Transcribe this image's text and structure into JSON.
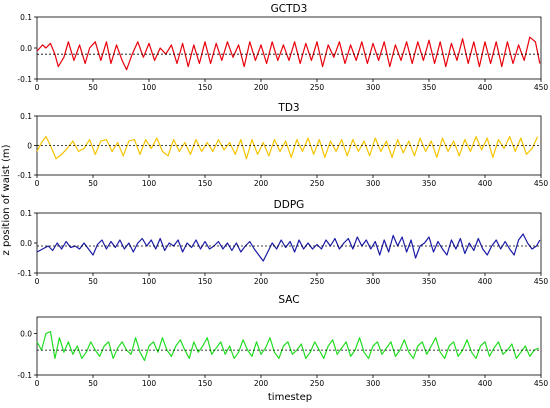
{
  "figure": {
    "xlabel": "timestep",
    "ylabel": "z position of waist (m)"
  },
  "chart_data": [
    {
      "type": "line",
      "title": "GCTD3",
      "color": "#e8000b",
      "x_ticks": [
        0,
        50,
        100,
        150,
        200,
        250,
        300,
        350,
        400,
        450
      ],
      "y_ticks": [
        -0.1,
        0.0,
        0.1
      ],
      "y_tick_labels": [
        "-0.1",
        "0.0",
        "0.1"
      ],
      "xlim": [
        0,
        450
      ],
      "ylim": [
        -0.1,
        0.1
      ],
      "reference_line": -0.02,
      "series": [
        {
          "x": [
            0,
            5,
            8,
            12,
            16,
            19,
            24,
            28,
            33,
            38,
            43,
            47,
            52,
            57,
            62,
            66,
            71,
            76,
            80,
            85,
            90,
            95,
            100,
            105,
            110,
            115,
            120,
            125,
            130,
            135,
            140,
            145,
            150,
            155,
            160,
            165,
            170,
            175,
            180,
            185,
            190,
            195,
            200,
            205,
            210,
            215,
            220,
            225,
            230,
            235,
            240,
            245,
            250,
            255,
            260,
            265,
            270,
            275,
            280,
            285,
            290,
            295,
            300,
            305,
            310,
            315,
            320,
            325,
            330,
            335,
            340,
            345,
            350,
            355,
            360,
            365,
            370,
            375,
            380,
            385,
            390,
            395,
            400,
            405,
            410,
            415,
            420,
            425,
            430,
            435,
            440,
            445,
            449
          ],
          "y": [
            -0.01,
            0.01,
            0.0,
            0.015,
            -0.02,
            -0.06,
            -0.03,
            0.02,
            -0.04,
            0.01,
            -0.05,
            0.0,
            0.02,
            -0.04,
            0.02,
            -0.05,
            0.01,
            -0.04,
            -0.07,
            -0.02,
            0.02,
            -0.03,
            0.015,
            -0.04,
            0.0,
            -0.02,
            0.01,
            -0.05,
            0.015,
            -0.06,
            0.01,
            -0.05,
            0.02,
            -0.05,
            0.015,
            -0.04,
            0.02,
            -0.03,
            0.01,
            -0.06,
            0.02,
            -0.04,
            0.01,
            -0.05,
            0.02,
            -0.04,
            0.01,
            -0.04,
            0.02,
            -0.05,
            0.015,
            -0.04,
            0.02,
            -0.06,
            0.01,
            -0.03,
            0.02,
            -0.05,
            0.01,
            -0.04,
            0.02,
            -0.05,
            0.015,
            -0.04,
            0.02,
            -0.06,
            0.01,
            -0.04,
            0.02,
            -0.05,
            0.02,
            -0.04,
            0.025,
            -0.05,
            0.02,
            -0.06,
            0.015,
            -0.04,
            0.03,
            -0.05,
            0.02,
            -0.06,
            0.02,
            -0.05,
            0.02,
            -0.06,
            0.02,
            -0.05,
            0.01,
            -0.04,
            0.035,
            0.02,
            -0.05
          ]
        }
      ]
    },
    {
      "type": "line",
      "title": "TD3",
      "color": "#f5c400",
      "x_ticks": [
        0,
        50,
        100,
        150,
        200,
        250,
        300,
        350,
        400,
        450
      ],
      "y_ticks": [
        -0.1,
        0.0,
        0.1
      ],
      "y_tick_labels": [
        "-0.1",
        "0",
        "0.1"
      ],
      "xlim": [
        0,
        450
      ],
      "ylim": [
        -0.1,
        0.1
      ],
      "reference_line": 0.0,
      "series": [
        {
          "x": [
            0,
            4,
            8,
            12,
            17,
            22,
            27,
            32,
            37,
            42,
            47,
            52,
            57,
            62,
            67,
            72,
            77,
            82,
            87,
            92,
            97,
            102,
            107,
            112,
            117,
            122,
            127,
            132,
            137,
            142,
            147,
            152,
            157,
            162,
            167,
            172,
            177,
            182,
            187,
            192,
            197,
            202,
            207,
            212,
            217,
            222,
            227,
            232,
            237,
            242,
            247,
            252,
            257,
            262,
            267,
            272,
            277,
            282,
            287,
            292,
            297,
            302,
            307,
            312,
            317,
            322,
            327,
            332,
            337,
            342,
            347,
            352,
            357,
            362,
            367,
            372,
            377,
            382,
            387,
            392,
            397,
            402,
            407,
            412,
            417,
            422,
            427,
            432,
            437,
            442,
            447
          ],
          "y": [
            -0.02,
            0.01,
            0.03,
            0.0,
            -0.045,
            -0.03,
            -0.01,
            0.015,
            -0.02,
            -0.01,
            0.02,
            -0.03,
            0.015,
            0.02,
            -0.02,
            0.01,
            -0.035,
            0.015,
            0.02,
            -0.03,
            0.02,
            -0.01,
            0.025,
            -0.02,
            -0.035,
            0.02,
            -0.02,
            0.01,
            -0.03,
            0.02,
            -0.02,
            0.01,
            -0.02,
            0.02,
            -0.015,
            0.01,
            -0.03,
            0.02,
            -0.045,
            0.02,
            -0.03,
            0.01,
            -0.035,
            0.02,
            -0.02,
            0.015,
            -0.04,
            0.02,
            -0.02,
            0.025,
            -0.03,
            0.02,
            -0.04,
            0.015,
            -0.02,
            0.02,
            -0.035,
            0.02,
            -0.02,
            0.015,
            -0.035,
            0.025,
            -0.02,
            0.015,
            -0.04,
            0.02,
            -0.025,
            0.015,
            -0.035,
            0.025,
            -0.02,
            0.015,
            -0.04,
            0.025,
            -0.02,
            0.015,
            -0.035,
            0.02,
            -0.02,
            0.03,
            -0.015,
            0.025,
            -0.04,
            0.02,
            -0.01,
            0.03,
            -0.02,
            0.025,
            -0.03,
            -0.01,
            0.03
          ]
        }
      ]
    },
    {
      "type": "line",
      "title": "DDPG",
      "color": "#1a1aa6",
      "x_ticks": [
        0,
        50,
        100,
        150,
        200,
        250,
        300,
        350,
        400,
        450
      ],
      "y_ticks": [
        -0.1,
        0.0,
        0.1
      ],
      "y_tick_labels": [
        "-0.1",
        "0.0",
        "0.1"
      ],
      "xlim": [
        0,
        450
      ],
      "ylim": [
        -0.1,
        0.1
      ],
      "reference_line": -0.01,
      "series": [
        {
          "x": [
            0,
            5,
            10,
            14,
            18,
            22,
            26,
            30,
            34,
            38,
            42,
            46,
            50,
            54,
            58,
            62,
            66,
            70,
            74,
            78,
            82,
            86,
            90,
            94,
            98,
            102,
            106,
            110,
            114,
            118,
            122,
            126,
            130,
            134,
            138,
            142,
            146,
            150,
            154,
            158,
            162,
            166,
            170,
            174,
            178,
            182,
            186,
            190,
            194,
            198,
            202,
            206,
            210,
            214,
            218,
            222,
            226,
            230,
            234,
            238,
            242,
            246,
            250,
            254,
            258,
            262,
            266,
            270,
            274,
            278,
            282,
            286,
            290,
            294,
            298,
            302,
            306,
            310,
            314,
            318,
            322,
            326,
            330,
            334,
            338,
            342,
            346,
            350,
            354,
            358,
            362,
            366,
            370,
            374,
            378,
            382,
            386,
            390,
            394,
            398,
            402,
            406,
            410,
            414,
            418,
            422,
            426,
            430,
            434,
            438,
            442,
            446,
            449
          ],
          "y": [
            -0.03,
            -0.02,
            -0.01,
            -0.025,
            0.0,
            -0.02,
            0.005,
            -0.015,
            -0.01,
            -0.02,
            0.0,
            -0.02,
            -0.04,
            -0.005,
            0.01,
            -0.02,
            0.005,
            -0.015,
            0.01,
            -0.02,
            0.0,
            -0.03,
            0.0,
            0.015,
            -0.01,
            0.01,
            -0.02,
            0.015,
            -0.025,
            0.0,
            -0.01,
            0.01,
            -0.03,
            0.0,
            -0.015,
            0.01,
            -0.02,
            0.005,
            -0.02,
            -0.01,
            0.005,
            -0.02,
            0.0,
            -0.025,
            0.0,
            -0.03,
            -0.01,
            0.005,
            -0.02,
            -0.04,
            -0.06,
            -0.03,
            0.0,
            -0.02,
            0.01,
            -0.015,
            0.005,
            -0.03,
            0.01,
            -0.02,
            0.0,
            -0.02,
            -0.005,
            -0.02,
            0.01,
            -0.01,
            0.015,
            -0.02,
            0.0,
            0.015,
            -0.02,
            0.02,
            -0.01,
            0.01,
            -0.02,
            0.005,
            -0.04,
            0.01,
            -0.03,
            0.025,
            -0.01,
            0.02,
            -0.03,
            0.01,
            -0.05,
            -0.01,
            0.0,
            0.02,
            -0.03,
            0.005,
            -0.02,
            -0.04,
            0.01,
            -0.02,
            0.015,
            -0.035,
            0.0,
            -0.025,
            0.015,
            -0.02,
            -0.04,
            -0.01,
            0.01,
            -0.02,
            0.005,
            -0.02,
            -0.04,
            0.01,
            0.03,
            0.0,
            -0.02,
            -0.01,
            0.01
          ]
        }
      ]
    },
    {
      "type": "line",
      "title": "SAC",
      "color": "#22dd22",
      "x_ticks": [
        0,
        50,
        100,
        150,
        200,
        250,
        300,
        350,
        400,
        450
      ],
      "y_ticks": [
        -0.1,
        0.0
      ],
      "y_tick_labels": [
        "-0.1",
        "0.0"
      ],
      "xlim": [
        0,
        450
      ],
      "ylim": [
        -0.1,
        0.04
      ],
      "reference_line": -0.04,
      "series": [
        {
          "x": [
            0,
            4,
            8,
            12,
            16,
            20,
            24,
            28,
            32,
            36,
            40,
            44,
            48,
            52,
            56,
            60,
            64,
            68,
            72,
            76,
            80,
            84,
            88,
            92,
            96,
            100,
            104,
            108,
            112,
            116,
            120,
            124,
            128,
            132,
            136,
            140,
            144,
            148,
            152,
            156,
            160,
            164,
            168,
            172,
            176,
            180,
            184,
            188,
            192,
            196,
            200,
            204,
            208,
            212,
            216,
            220,
            224,
            228,
            232,
            236,
            240,
            244,
            248,
            252,
            256,
            260,
            264,
            268,
            272,
            276,
            280,
            284,
            288,
            292,
            296,
            300,
            304,
            308,
            312,
            316,
            320,
            324,
            328,
            332,
            336,
            340,
            344,
            348,
            352,
            356,
            360,
            364,
            368,
            372,
            376,
            380,
            384,
            388,
            392,
            396,
            400,
            404,
            408,
            412,
            416,
            420,
            424,
            428,
            432,
            436,
            440,
            444,
            448
          ],
          "y": [
            -0.02,
            -0.04,
            0.0,
            0.005,
            -0.06,
            -0.01,
            -0.045,
            -0.02,
            -0.05,
            -0.03,
            -0.06,
            -0.045,
            -0.02,
            -0.04,
            -0.055,
            -0.03,
            -0.02,
            -0.06,
            -0.035,
            -0.02,
            -0.04,
            -0.05,
            -0.01,
            -0.045,
            -0.065,
            -0.03,
            -0.02,
            -0.045,
            -0.01,
            -0.04,
            -0.055,
            -0.03,
            -0.015,
            -0.04,
            -0.06,
            -0.02,
            -0.045,
            -0.03,
            -0.01,
            -0.05,
            -0.035,
            -0.02,
            -0.05,
            -0.03,
            -0.06,
            -0.045,
            -0.015,
            -0.04,
            -0.055,
            -0.02,
            -0.05,
            -0.035,
            -0.01,
            -0.045,
            -0.06,
            -0.03,
            -0.02,
            -0.05,
            -0.04,
            -0.025,
            -0.06,
            -0.045,
            -0.02,
            -0.04,
            -0.06,
            -0.03,
            -0.015,
            -0.05,
            -0.035,
            -0.02,
            -0.055,
            -0.04,
            -0.01,
            -0.045,
            -0.06,
            -0.03,
            -0.02,
            -0.05,
            -0.035,
            -0.02,
            -0.055,
            -0.04,
            -0.015,
            -0.045,
            -0.06,
            -0.03,
            -0.02,
            -0.05,
            -0.03,
            -0.01,
            -0.045,
            -0.06,
            -0.03,
            -0.02,
            -0.055,
            -0.04,
            -0.015,
            -0.045,
            -0.06,
            -0.03,
            -0.02,
            -0.055,
            -0.035,
            -0.02,
            -0.05,
            -0.04,
            -0.025,
            -0.06,
            -0.045,
            -0.03,
            -0.055,
            -0.04,
            -0.035
          ]
        }
      ]
    }
  ]
}
